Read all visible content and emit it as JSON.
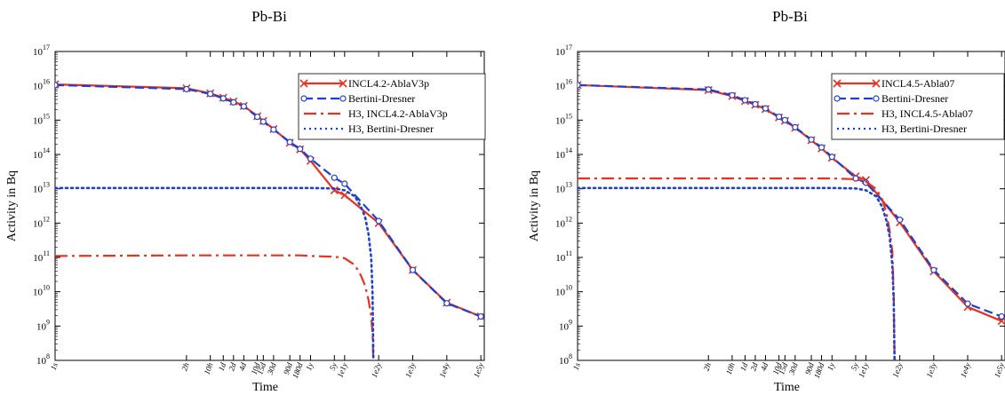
{
  "chart_data": [
    {
      "type": "line",
      "title": "Pb-Bi",
      "xlabel": "Time",
      "ylabel": "Activity in Bq",
      "x_scale": "log",
      "y_scale": "log",
      "y_tick_base": "10",
      "y_tick_exponents": [
        "8",
        "9",
        "10",
        "11",
        "12",
        "13",
        "14",
        "15",
        "16",
        "17"
      ],
      "ylim": [
        100000000.0,
        1e+17
      ],
      "x_tick_labels": [
        "1s",
        "2h",
        "10h",
        "1d",
        "2d",
        "4d",
        "10d",
        "15d",
        "30d",
        "90d",
        "180d",
        "1y",
        "5y",
        "1e1y",
        "1e2y",
        "1e3y",
        "1e4y",
        "1e5y"
      ],
      "x_tick_values_seconds": [
        1,
        7200,
        36000,
        86400,
        172800,
        345600,
        864000,
        1296000,
        2592000,
        7776000,
        15552000,
        31557600,
        157788000,
        315576000,
        3155760000,
        31557600000,
        315576000000,
        3155760000000
      ],
      "legend_position": "top-right",
      "series": [
        {
          "name": "INCL4.2-AblaV3p",
          "color": "#e8321e",
          "dash": "solid",
          "marker": "x",
          "x": [
            1,
            7200,
            36000,
            86400,
            172800,
            345600,
            864000,
            1296000,
            2592000,
            7776000,
            15552000,
            31557600,
            157788000,
            315576000,
            3155760000,
            31557600000,
            315576000000,
            3155760000000
          ],
          "y": [
            1.1e+16,
            8500000000000000.0,
            6000000000000000.0,
            4500000000000000.0,
            3500000000000000.0,
            2600000000000000.0,
            1300000000000000.0,
            950000000000000.0,
            550000000000000.0,
            220000000000000.0,
            140000000000000.0,
            65000000000000.0,
            9000000000000.0,
            6500000000000.0,
            1000000000000.0,
            43000000000.0,
            4800000000.0,
            1900000000.0
          ]
        },
        {
          "name": "Bertini-Dresner",
          "color": "#1f3fd0",
          "dash": "dashed",
          "marker": "o",
          "x": [
            1,
            7200,
            36000,
            86400,
            172800,
            345600,
            864000,
            1296000,
            2592000,
            7776000,
            15552000,
            31557600,
            157788000,
            315576000,
            3155760000,
            31557600000,
            315576000000,
            3155760000000
          ],
          "y": [
            1.05e+16,
            8000000000000000.0,
            5800000000000000.0,
            4300000000000000.0,
            3300000000000000.0,
            2500000000000000.0,
            1250000000000000.0,
            900000000000000.0,
            530000000000000.0,
            230000000000000.0,
            145000000000000.0,
            75000000000000.0,
            21000000000000.0,
            14000000000000.0,
            1150000000000.0,
            43000000000.0,
            4600000000.0,
            1900000000.0
          ]
        },
        {
          "name": "H3, INCL4.2-AblaV3p",
          "color": "#e8321e",
          "dash": "dashdot",
          "marker": "none",
          "x": [
            1,
            7200,
            36000,
            86400,
            172800,
            345600,
            864000,
            1296000,
            2592000,
            7776000,
            15552000,
            31557600,
            157788000,
            315576000,
            631152000,
            946728000,
            1262304000,
            1577880000,
            1893456000,
            2082931200,
            2208988800
          ],
          "y": [
            110000000000.0,
            115000000000.0,
            115000000000.0,
            115000000000.0,
            115000000000.0,
            115000000000.0,
            115000000000.0,
            115000000000.0,
            115000000000.0,
            115000000000.0,
            115000000000.0,
            110000000000.0,
            105000000000.0,
            95000000000.0,
            60000000000.0,
            30000000000.0,
            15000000000.0,
            6000000000.0,
            2000000000.0,
            600000000.0,
            100000000.0
          ]
        },
        {
          "name": "H3, Bertini-Dresner",
          "color": "#1f3fd0",
          "dash": "dotted",
          "marker": "none",
          "x": [
            1,
            7200,
            36000,
            86400,
            172800,
            345600,
            864000,
            1296000,
            2592000,
            7776000,
            15552000,
            31557600,
            157788000,
            315576000,
            631152000,
            946728000,
            1262304000,
            1577880000,
            1893456000,
            2082931200,
            2208988800
          ],
          "y": [
            10500000000000.0,
            10500000000000.0,
            10500000000000.0,
            10500000000000.0,
            10500000000000.0,
            10500000000000.0,
            10500000000000.0,
            10500000000000.0,
            10500000000000.0,
            10500000000000.0,
            10500000000000.0,
            10500000000000.0,
            10200000000000.0,
            9000000000000.0,
            6000000000000.0,
            3000000000000.0,
            1500000000000.0,
            500000000000.0,
            100000000000.0,
            10000000000.0,
            100000000.0
          ]
        }
      ]
    },
    {
      "type": "line",
      "title": "Pb-Bi",
      "xlabel": "Time",
      "ylabel": "Activity in Bq",
      "x_scale": "log",
      "y_scale": "log",
      "y_tick_base": "10",
      "y_tick_exponents": [
        "8",
        "9",
        "10",
        "11",
        "12",
        "13",
        "14",
        "15",
        "16",
        "17"
      ],
      "ylim": [
        100000000.0,
        1e+17
      ],
      "x_tick_labels": [
        "1s",
        "2h",
        "10h",
        "1d",
        "2d",
        "4d",
        "10d",
        "15d",
        "30d",
        "90d",
        "180d",
        "1y",
        "5y",
        "1e1y",
        "1e2y",
        "1e3y",
        "1e4y",
        "1e5y"
      ],
      "x_tick_values_seconds": [
        1,
        7200,
        36000,
        86400,
        172800,
        345600,
        864000,
        1296000,
        2592000,
        7776000,
        15552000,
        31557600,
        157788000,
        315576000,
        3155760000,
        31557600000,
        315576000000,
        3155760000000
      ],
      "legend_position": "top-right",
      "series": [
        {
          "name": "INCL4.5-Abla07",
          "color": "#e8321e",
          "dash": "solid",
          "marker": "x",
          "x": [
            1,
            7200,
            36000,
            86400,
            172800,
            345600,
            864000,
            1296000,
            2592000,
            7776000,
            15552000,
            31557600,
            157788000,
            315576000,
            3155760000,
            31557600000,
            315576000000,
            3155760000000
          ],
          "y": [
            1.05e+16,
            7500000000000000.0,
            5000000000000000.0,
            3600000000000000.0,
            2800000000000000.0,
            2100000000000000.0,
            1200000000000000.0,
            950000000000000.0,
            600000000000000.0,
            260000000000000.0,
            150000000000000.0,
            80000000000000.0,
            23000000000000.0,
            18000000000000.0,
            1050000000000.0,
            39000000000.0,
            3600000000.0,
            1400000000.0
          ]
        },
        {
          "name": "Bertini-Dresner",
          "color": "#1f3fd0",
          "dash": "dashed",
          "marker": "o",
          "x": [
            1,
            7200,
            36000,
            86400,
            172800,
            345600,
            864000,
            1296000,
            2592000,
            7776000,
            15552000,
            31557600,
            157788000,
            315576000,
            3155760000,
            31557600000,
            315576000000,
            3155760000000
          ],
          "y": [
            1.05e+16,
            7800000000000000.0,
            5300000000000000.0,
            3800000000000000.0,
            2900000000000000.0,
            2200000000000000.0,
            1250000000000000.0,
            1000000000000000.0,
            620000000000000.0,
            270000000000000.0,
            160000000000000.0,
            85000000000000.0,
            20000000000000.0,
            15000000000000.0,
            1250000000000.0,
            43000000000.0,
            4500000000.0,
            1900000000.0
          ]
        },
        {
          "name": "H3, INCL4.5-Abla07",
          "color": "#e8321e",
          "dash": "dashdot",
          "marker": "none",
          "x": [
            1,
            7200,
            36000,
            86400,
            172800,
            345600,
            864000,
            1296000,
            2592000,
            7776000,
            15552000,
            31557600,
            157788000,
            315576000,
            631152000,
            946728000,
            1262304000,
            1577880000,
            1893456000,
            2082931200,
            2208988800
          ],
          "y": [
            20000000000000.0,
            20000000000000.0,
            20000000000000.0,
            20000000000000.0,
            20000000000000.0,
            20000000000000.0,
            20000000000000.0,
            20000000000000.0,
            20000000000000.0,
            20000000000000.0,
            20000000000000.0,
            20000000000000.0,
            19000000000000.0,
            16000000000000.0,
            10000000000000.0,
            5000000000000.0,
            2000000000000.0,
            600000000000.0,
            150000000000.0,
            8000000000.0,
            100000000.0
          ]
        },
        {
          "name": "H3, Bertini-Dresner",
          "color": "#1f3fd0",
          "dash": "dotted",
          "marker": "none",
          "x": [
            1,
            7200,
            36000,
            86400,
            172800,
            345600,
            864000,
            1296000,
            2592000,
            7776000,
            15552000,
            31557600,
            157788000,
            315576000,
            631152000,
            946728000,
            1262304000,
            1577880000,
            1893456000,
            2082931200,
            2208988800
          ],
          "y": [
            10500000000000.0,
            10500000000000.0,
            10500000000000.0,
            10500000000000.0,
            10500000000000.0,
            10500000000000.0,
            10500000000000.0,
            10500000000000.0,
            10500000000000.0,
            10500000000000.0,
            10500000000000.0,
            10500000000000.0,
            10200000000000.0,
            9000000000000.0,
            6000000000000.0,
            3000000000000.0,
            1200000000000.0,
            400000000000.0,
            60000000000.0,
            5000000000.0,
            100000000.0
          ]
        }
      ]
    }
  ]
}
